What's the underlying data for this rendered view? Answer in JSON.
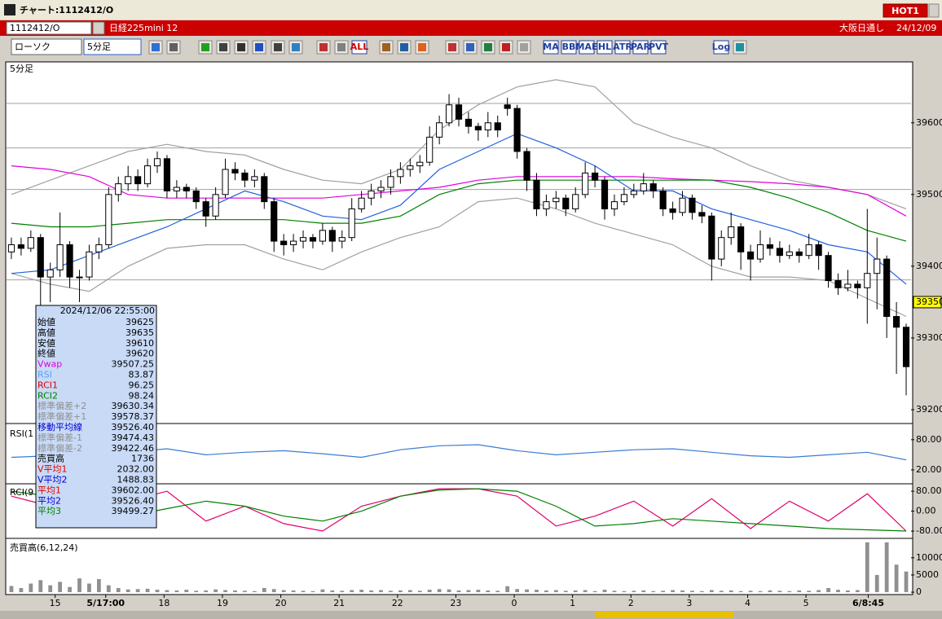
{
  "window": {
    "title": "チャート:1112412/O",
    "hot": "HOT1"
  },
  "symbol_bar": {
    "code": "1112412/O",
    "name": "日経225mini 12",
    "market": "大阪日通し",
    "date": "24/12/09"
  },
  "toolbar": {
    "chart_style": "ローソク",
    "interval": "5分足",
    "icon_labels": [
      "ALL",
      "MA",
      "BB",
      "MAE",
      "HL",
      "ATR",
      "PAR",
      "PVT",
      "Log"
    ]
  },
  "info_panel": {
    "datetime": "2024/12/06  22:55:00",
    "rows": [
      {
        "label": "始値",
        "value": "39625",
        "color": "#000000"
      },
      {
        "label": "高値",
        "value": "39635",
        "color": "#000000"
      },
      {
        "label": "安値",
        "value": "39610",
        "color": "#000000"
      },
      {
        "label": "終値",
        "value": "39620",
        "color": "#000000"
      },
      {
        "label": "Vwap",
        "value": "39507.25",
        "color": "#e000e0"
      },
      {
        "label": "RSI",
        "value": "83.87",
        "color": "#5aa0ff"
      },
      {
        "label": "RCI1",
        "value": "96.25",
        "color": "#e00000"
      },
      {
        "label": "RCI2",
        "value": "98.24",
        "color": "#008000"
      },
      {
        "label": "標準偏差+2",
        "value": "39630.34",
        "color": "#909090"
      },
      {
        "label": "標準偏差+1",
        "value": "39578.37",
        "color": "#909090"
      },
      {
        "label": "移動平均線",
        "value": "39526.40",
        "color": "#0000d0"
      },
      {
        "label": "標準偏差-1",
        "value": "39474.43",
        "color": "#909090"
      },
      {
        "label": "標準偏差-2",
        "value": "39422.46",
        "color": "#909090"
      },
      {
        "label": "売買高",
        "value": "1736",
        "color": "#000000"
      },
      {
        "label": "V平均1",
        "value": "2032.00",
        "color": "#e00000"
      },
      {
        "label": "V平均2",
        "value": "1488.83",
        "color": "#0000d0"
      },
      {
        "label": "平均1",
        "value": "39602.00",
        "color": "#e00000"
      },
      {
        "label": "平均2",
        "value": "39526.40",
        "color": "#0000d0"
      },
      {
        "label": "平均3",
        "value": "39499.27",
        "color": "#008000"
      }
    ]
  },
  "chart_data": [
    {
      "type": "candlestick",
      "title": "5分足",
      "xlim": [
        0,
        93
      ],
      "ylim": [
        39183,
        39669
      ],
      "yticks": [
        39200,
        39300,
        39400,
        39500,
        39600
      ],
      "last_price": 39350,
      "levels": [
        39627,
        39565,
        39507,
        39381
      ],
      "up_color": "#ffffff",
      "down_color": "#000000",
      "open": [
        39420,
        39430,
        39425,
        39440,
        39385,
        39395,
        39430,
        39385,
        39385,
        39420,
        39430,
        39500,
        39515,
        39525,
        39515,
        39540,
        39550,
        39505,
        39510,
        39505,
        39490,
        39470,
        39500,
        39535,
        39530,
        39520,
        39525,
        39490,
        39435,
        39430,
        39435,
        39440,
        39435,
        39450,
        39435,
        39440,
        39480,
        39495,
        39505,
        39510,
        39525,
        39535,
        39540,
        39545,
        39580,
        39600,
        39625,
        39605,
        39595,
        39590,
        39600,
        39625,
        39620,
        39560,
        39520,
        39480,
        39490,
        39495,
        39480,
        39500,
        39530,
        39520,
        39480,
        39490,
        39500,
        39505,
        39515,
        39505,
        39480,
        39475,
        39495,
        39475,
        39470,
        39410,
        39440,
        39455,
        39420,
        39410,
        39430,
        39425,
        39415,
        39420,
        39415,
        39430,
        39415,
        39380,
        39370,
        39375,
        39370,
        39390,
        39410,
        39330,
        39315
      ],
      "high": [
        39440,
        39440,
        39450,
        39445,
        39405,
        39475,
        39435,
        39395,
        39430,
        39440,
        39510,
        39525,
        39540,
        39535,
        39550,
        39560,
        39555,
        39520,
        39515,
        39510,
        39495,
        39510,
        39550,
        39545,
        39535,
        39535,
        39530,
        39495,
        39445,
        39445,
        39450,
        39445,
        39460,
        39455,
        39450,
        39495,
        39505,
        39515,
        39520,
        39535,
        39545,
        39550,
        39555,
        39595,
        39610,
        39640,
        39635,
        39615,
        39600,
        39615,
        39610,
        39635,
        39625,
        39565,
        39530,
        39500,
        39505,
        39500,
        39510,
        39545,
        39540,
        39525,
        39500,
        39510,
        39515,
        39530,
        39520,
        39510,
        39490,
        39505,
        39500,
        39485,
        39475,
        39450,
        39475,
        39460,
        39430,
        39450,
        39440,
        39435,
        39430,
        39425,
        39445,
        39435,
        39420,
        39390,
        39395,
        39380,
        39480,
        39440,
        39415,
        39350,
        39320
      ],
      "low": [
        39410,
        39415,
        39420,
        39345,
        39350,
        39385,
        39370,
        39350,
        39380,
        39410,
        39425,
        39490,
        39505,
        39505,
        39510,
        39530,
        39495,
        39495,
        39495,
        39480,
        39455,
        39465,
        39495,
        39520,
        39510,
        39510,
        39480,
        39420,
        39415,
        39420,
        39425,
        39425,
        39430,
        39420,
        39425,
        39435,
        39475,
        39485,
        39495,
        39500,
        39515,
        39525,
        39530,
        39540,
        39570,
        39595,
        39595,
        39585,
        39575,
        39580,
        39580,
        39610,
        39550,
        39505,
        39470,
        39470,
        39480,
        39470,
        39475,
        39495,
        39510,
        39465,
        39470,
        39485,
        39495,
        39500,
        39495,
        39470,
        39465,
        39470,
        39465,
        39460,
        39380,
        39400,
        39430,
        39395,
        39380,
        39405,
        39415,
        39405,
        39410,
        39405,
        39410,
        39395,
        39370,
        39360,
        39365,
        39355,
        39320,
        39340,
        39300,
        39250,
        39220
      ],
      "close": [
        39430,
        39425,
        39440,
        39385,
        39395,
        39430,
        39385,
        39385,
        39420,
        39430,
        39500,
        39515,
        39525,
        39515,
        39540,
        39550,
        39505,
        39510,
        39505,
        39490,
        39470,
        39500,
        39535,
        39530,
        39520,
        39525,
        39490,
        39435,
        39430,
        39435,
        39440,
        39435,
        39450,
        39435,
        39440,
        39480,
        39495,
        39505,
        39510,
        39525,
        39535,
        39540,
        39545,
        39580,
        39600,
        39625,
        39605,
        39595,
        39590,
        39600,
        39590,
        39620,
        39560,
        39520,
        39480,
        39490,
        39495,
        39480,
        39500,
        39530,
        39520,
        39480,
        39490,
        39500,
        39505,
        39515,
        39505,
        39480,
        39475,
        39495,
        39475,
        39470,
        39410,
        39440,
        39455,
        39420,
        39410,
        39430,
        39425,
        39415,
        39420,
        39415,
        39430,
        39415,
        39380,
        39370,
        39375,
        39370,
        39390,
        39410,
        39330,
        39315,
        39260
      ],
      "series": [
        {
          "color": "#a0a0a0",
          "x": [
            0,
            4,
            8,
            12,
            16,
            20,
            24,
            28,
            32,
            36,
            40,
            44,
            48,
            52,
            56,
            60,
            64,
            68,
            72,
            76,
            80,
            84,
            88,
            92
          ],
          "values": [
            39500,
            39520,
            39540,
            39560,
            39570,
            39560,
            39555,
            39535,
            39520,
            39515,
            39535,
            39590,
            39625,
            39650,
            39660,
            39650,
            39600,
            39580,
            39565,
            39540,
            39520,
            39510,
            39500,
            39480
          ]
        },
        {
          "color": "#a0a0a0",
          "x": [
            0,
            4,
            8,
            12,
            16,
            20,
            24,
            28,
            32,
            36,
            40,
            44,
            48,
            52,
            56,
            60,
            64,
            68,
            72,
            76,
            80,
            84,
            88,
            92
          ],
          "values": [
            39390,
            39375,
            39365,
            39400,
            39425,
            39430,
            39430,
            39410,
            39395,
            39420,
            39440,
            39455,
            39490,
            39495,
            39480,
            39460,
            39445,
            39430,
            39400,
            39385,
            39385,
            39380,
            39355,
            39330
          ]
        },
        {
          "color": "#e000e0",
          "x": [
            0,
            4,
            8,
            12,
            16,
            20,
            24,
            28,
            32,
            36,
            40,
            44,
            48,
            52,
            56,
            60,
            64,
            68,
            72,
            76,
            80,
            84,
            88,
            92
          ],
          "values": [
            39540,
            39535,
            39525,
            39500,
            39495,
            39495,
            39495,
            39495,
            39495,
            39500,
            39505,
            39510,
            39520,
            39525,
            39525,
            39525,
            39525,
            39522,
            39520,
            39518,
            39515,
            39510,
            39500,
            39470
          ]
        },
        {
          "color": "#008000",
          "x": [
            0,
            4,
            8,
            12,
            16,
            20,
            24,
            28,
            32,
            36,
            40,
            44,
            48,
            52,
            56,
            60,
            64,
            68,
            72,
            76,
            80,
            84,
            88,
            92
          ],
          "values": [
            39460,
            39455,
            39455,
            39460,
            39465,
            39465,
            39465,
            39465,
            39460,
            39460,
            39470,
            39500,
            39515,
            39520,
            39520,
            39520,
            39520,
            39520,
            39520,
            39510,
            39495,
            39475,
            39450,
            39435
          ]
        },
        {
          "color": "#2060e0",
          "x": [
            0,
            4,
            8,
            12,
            16,
            20,
            24,
            28,
            32,
            36,
            40,
            44,
            48,
            52,
            56,
            60,
            64,
            68,
            72,
            76,
            80,
            84,
            88,
            92
          ],
          "values": [
            39390,
            39395,
            39415,
            39435,
            39455,
            39480,
            39505,
            39490,
            39470,
            39465,
            39485,
            39535,
            39560,
            39585,
            39565,
            39540,
            39505,
            39505,
            39480,
            39465,
            39450,
            39430,
            39420,
            39375
          ]
        }
      ]
    },
    {
      "type": "line",
      "title": "RSI(1",
      "xlim": [
        0,
        93
      ],
      "ylim": [
        -6,
        104
      ],
      "yticks": [
        {
          "value": 80,
          "label": "80.00"
        },
        {
          "value": 20,
          "label": "20.00"
        }
      ],
      "series": [
        {
          "color": "#3a7bd5",
          "x": [
            0,
            4,
            8,
            12,
            16,
            20,
            24,
            28,
            32,
            36,
            40,
            44,
            48,
            52,
            56,
            60,
            64,
            68,
            72,
            76,
            80,
            84,
            88,
            92
          ],
          "values": [
            45,
            48,
            60,
            55,
            62,
            50,
            55,
            58,
            52,
            45,
            60,
            68,
            70,
            58,
            50,
            55,
            60,
            62,
            55,
            48,
            45,
            50,
            55,
            40
          ]
        }
      ]
    },
    {
      "type": "line",
      "title": "RCI(9",
      "xlim": [
        0,
        93
      ],
      "ylim": [
        -106,
        100
      ],
      "yticks": [
        {
          "value": 80,
          "label": "80.00"
        },
        {
          "value": 0,
          "label": "0.00"
        },
        {
          "value": -80,
          "label": "-80.00"
        }
      ],
      "series": [
        {
          "color": "#e0006a",
          "x": [
            0,
            4,
            8,
            12,
            16,
            20,
            24,
            28,
            32,
            36,
            40,
            44,
            48,
            52,
            56,
            60,
            64,
            68,
            72,
            76,
            80,
            84,
            88,
            92
          ],
          "values": [
            60,
            20,
            -60,
            40,
            80,
            -40,
            20,
            -50,
            -80,
            20,
            60,
            90,
            90,
            60,
            -60,
            -20,
            40,
            -60,
            50,
            -70,
            40,
            -40,
            70,
            -80
          ]
        },
        {
          "color": "#008000",
          "x": [
            0,
            4,
            8,
            12,
            16,
            20,
            24,
            28,
            32,
            36,
            40,
            44,
            48,
            52,
            56,
            60,
            64,
            68,
            72,
            76,
            80,
            84,
            88,
            92
          ],
          "values": [
            80,
            60,
            20,
            -20,
            10,
            40,
            20,
            -20,
            -40,
            0,
            60,
            85,
            90,
            80,
            20,
            -60,
            -50,
            -30,
            -40,
            -50,
            -60,
            -70,
            -75,
            -80
          ]
        }
      ]
    },
    {
      "type": "bar",
      "title": "売買高(6,12,24)",
      "xlim": [
        0,
        93
      ],
      "ylim": [
        -700,
        14700
      ],
      "color": "#909090",
      "yticks": [
        10000,
        5000,
        0
      ],
      "xticks": [
        {
          "value": 5,
          "label": "15"
        },
        {
          "value": 10.2,
          "label": "5/17:00"
        },
        {
          "value": 16.2,
          "label": "18"
        },
        {
          "value": 22.2,
          "label": "19"
        },
        {
          "value": 28.2,
          "label": "20"
        },
        {
          "value": 34.2,
          "label": "21"
        },
        {
          "value": 40.2,
          "label": "22"
        },
        {
          "value": 46.2,
          "label": "23"
        },
        {
          "value": 52.2,
          "label": "0"
        },
        {
          "value": 58.2,
          "label": "1"
        },
        {
          "value": 64.2,
          "label": "2"
        },
        {
          "value": 70.2,
          "label": "3"
        },
        {
          "value": 76.2,
          "label": "4"
        },
        {
          "value": 82.2,
          "label": "5"
        },
        {
          "value": 88.6,
          "label": "6/8:45"
        }
      ],
      "values": [
        1800,
        1200,
        2500,
        3500,
        2000,
        3000,
        1500,
        4000,
        2500,
        3800,
        2000,
        1200,
        800,
        900,
        1000,
        700,
        600,
        500,
        700,
        400,
        500,
        800,
        600,
        500,
        400,
        300,
        1200,
        900,
        600,
        500,
        400,
        300,
        800,
        500,
        400,
        600,
        700,
        500,
        600,
        400,
        500,
        600,
        400,
        700,
        900,
        800,
        500,
        600,
        700,
        500,
        400,
        1736,
        900,
        800,
        700,
        500,
        600,
        400,
        500,
        600,
        300,
        700,
        400,
        300,
        400,
        500,
        300,
        400,
        600,
        500,
        400,
        300,
        600,
        400,
        500,
        300,
        400,
        300,
        500,
        400,
        300,
        500,
        400,
        600,
        1200,
        700,
        500,
        600,
        14500,
        5000,
        14500,
        8000,
        6000
      ]
    }
  ]
}
